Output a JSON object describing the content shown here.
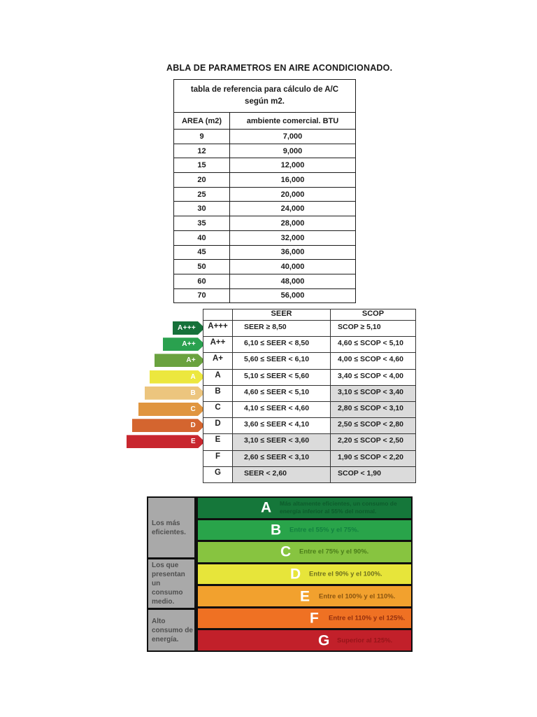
{
  "page": {
    "title": "ABLA DE PARAMETROS EN AIRE ACONDICIONADO."
  },
  "btu_table": {
    "caption_line1": "tabla de referencia para cálculo de A/C",
    "caption_line2": "según m2.",
    "columns": [
      "AREA (m2)",
      "ambiente comercial. BTU"
    ],
    "rows": [
      {
        "area": "9",
        "btu": "7,000"
      },
      {
        "area": "12",
        "btu": "9,000"
      },
      {
        "area": "15",
        "btu": "12,000"
      },
      {
        "area": "20",
        "btu": "16,000"
      },
      {
        "area": "25",
        "btu": "20,000"
      },
      {
        "area": "30",
        "btu": "24,000"
      },
      {
        "area": "35",
        "btu": "28,000"
      },
      {
        "area": "40",
        "btu": "32,000"
      },
      {
        "area": "45",
        "btu": "36,000"
      },
      {
        "area": "50",
        "btu": "40,000"
      },
      {
        "area": "60",
        "btu": "48,000"
      },
      {
        "area": "70",
        "btu": "56,000"
      }
    ]
  },
  "seer_scop": {
    "column_headers": {
      "seer": "SEER",
      "scop": "SCOP"
    },
    "arrows": [
      {
        "label": "A+++",
        "color": "#16713a"
      },
      {
        "label": "A++",
        "color": "#2aa14f"
      },
      {
        "label": "A+",
        "color": "#6aa23f"
      },
      {
        "label": "A",
        "color": "#ece73e"
      },
      {
        "label": "B",
        "color": "#ecc57e"
      },
      {
        "label": "C",
        "color": "#e0953f"
      },
      {
        "label": "D",
        "color": "#d4652f"
      },
      {
        "label": "E",
        "color": "#c8262e"
      }
    ],
    "rows": [
      {
        "grade": "A+++",
        "seer": "SEER ≥ 8,50",
        "scop": "SCOP ≥ 5,10",
        "seer_shaded": false,
        "scop_shaded": false
      },
      {
        "grade": "A++",
        "seer": "6,10 ≤ SEER < 8,50",
        "scop": "4,60 ≤ SCOP < 5,10",
        "seer_shaded": false,
        "scop_shaded": false
      },
      {
        "grade": "A+",
        "seer": "5,60 ≤ SEER < 6,10",
        "scop": "4,00 ≤ SCOP < 4,60",
        "seer_shaded": false,
        "scop_shaded": false
      },
      {
        "grade": "A",
        "seer": "5,10 ≤ SEER < 5,60",
        "scop": "3,40 ≤ SCOP < 4,00",
        "seer_shaded": false,
        "scop_shaded": false
      },
      {
        "grade": "B",
        "seer": "4,60 ≤ SEER < 5,10",
        "scop": "3,10 ≤ SCOP < 3,40",
        "seer_shaded": false,
        "scop_shaded": true
      },
      {
        "grade": "C",
        "seer": "4,10 ≤ SEER < 4,60",
        "scop": "2,80 ≤ SCOP < 3,10",
        "seer_shaded": false,
        "scop_shaded": true
      },
      {
        "grade": "D",
        "seer": "3,60 ≤ SEER < 4,10",
        "scop": "2,50 ≤ SCOP < 2,80",
        "seer_shaded": false,
        "scop_shaded": true
      },
      {
        "grade": "E",
        "seer": "3,10 ≤ SEER < 3,60",
        "scop": "2,20 ≤ SCOP < 2,50",
        "seer_shaded": true,
        "scop_shaded": true
      },
      {
        "grade": "F",
        "seer": "2,60 ≤ SEER < 3,10",
        "scop": "1,90 ≤ SCOP < 2,20",
        "seer_shaded": true,
        "scop_shaded": true
      },
      {
        "grade": "G",
        "seer": "SEER < 2,60",
        "scop": "SCOP < 1,90",
        "seer_shaded": true,
        "scop_shaded": true
      }
    ]
  },
  "consumption_chart": {
    "groups": [
      {
        "label": "Los más eficientes.",
        "span": 3
      },
      {
        "label": "Los que presentan un consumo medio.",
        "span": 2
      },
      {
        "label": "Alto consumo de energía.",
        "span": 2
      }
    ],
    "rows": [
      {
        "letter": "A",
        "description": "Más altamente eficientes, un consumo de energía inferior al 55% del normal.",
        "bar_color": "#15773a",
        "text_color": "#0d5c2c"
      },
      {
        "letter": "B",
        "description": "Entre el 55% y el 75%.",
        "bar_color": "#29a44a",
        "text_color": "#12813f"
      },
      {
        "letter": "C",
        "description": "Entre el 75% y el 90%.",
        "bar_color": "#87c440",
        "text_color": "#4a7d19"
      },
      {
        "letter": "D",
        "description": "Entre el 90% y el 100%.",
        "bar_color": "#e7e53a",
        "text_color": "#6f701e"
      },
      {
        "letter": "E",
        "description": "Entre el 100% y el 110%.",
        "bar_color": "#f2a12e",
        "text_color": "#8a5510"
      },
      {
        "letter": "F",
        "description": "Entre el 110% y el 125%.",
        "bar_color": "#ef7123",
        "text_color": "#932f0e"
      },
      {
        "letter": "G",
        "description": "Superior al 125%.",
        "bar_color": "#c2202a",
        "text_color": "#971419"
      }
    ]
  }
}
